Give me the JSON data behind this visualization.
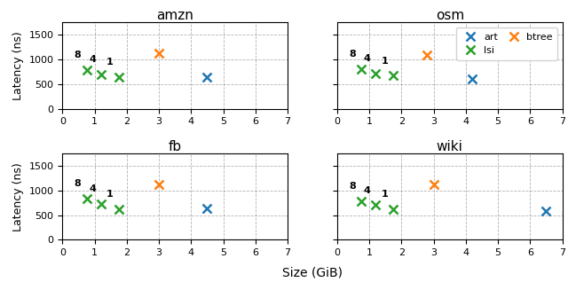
{
  "subplots": [
    {
      "title": "amzn",
      "lsi": {
        "x": [
          0.75,
          1.2,
          1.75
        ],
        "y": [
          780,
          690,
          640
        ],
        "labels": [
          "8",
          "4",
          "1"
        ]
      },
      "btree": {
        "x": [
          3.0
        ],
        "y": [
          1120
        ]
      },
      "art": {
        "x": [
          4.5
        ],
        "y": [
          640
        ]
      }
    },
    {
      "title": "osm",
      "lsi": {
        "x": [
          0.75,
          1.2,
          1.75
        ],
        "y": [
          800,
          720,
          670
        ],
        "labels": [
          "8",
          "4",
          "1"
        ]
      },
      "btree": {
        "x": [
          2.8
        ],
        "y": [
          1100
        ]
      },
      "art": {
        "x": [
          4.2
        ],
        "y": [
          600
        ]
      }
    },
    {
      "title": "fb",
      "lsi": {
        "x": [
          0.75,
          1.2,
          1.75
        ],
        "y": [
          830,
          720,
          620
        ],
        "labels": [
          "8",
          "4",
          "1"
        ]
      },
      "btree": {
        "x": [
          3.0
        ],
        "y": [
          1120
        ]
      },
      "art": {
        "x": [
          4.5
        ],
        "y": [
          640
        ]
      }
    },
    {
      "title": "wiki",
      "lsi": {
        "x": [
          0.75,
          1.2,
          1.75
        ],
        "y": [
          780,
          700,
          620
        ],
        "labels": [
          "8",
          "4",
          "1"
        ]
      },
      "btree": {
        "x": [
          3.0
        ],
        "y": [
          1120
        ]
      },
      "art": {
        "x": [
          6.5
        ],
        "y": [
          580
        ]
      }
    }
  ],
  "art_color": "#1f77b4",
  "lsi_color": "#2ca02c",
  "btree_color": "#ff7f0e",
  "marker": "x",
  "markersize": 7,
  "markeredgewidth": 1.8,
  "xlabel": "Size (GiB)",
  "ylabel": "Latency (ns)",
  "xlim": [
    0,
    7
  ],
  "ylim": [
    0,
    1750
  ],
  "yticks": [
    0,
    500,
    1000,
    1500
  ],
  "xticks": [
    0,
    1,
    2,
    3,
    4,
    5,
    6,
    7
  ],
  "label_fontsize": 9,
  "title_fontsize": 11,
  "tick_fontsize": 8,
  "annot_fontsize": 8
}
